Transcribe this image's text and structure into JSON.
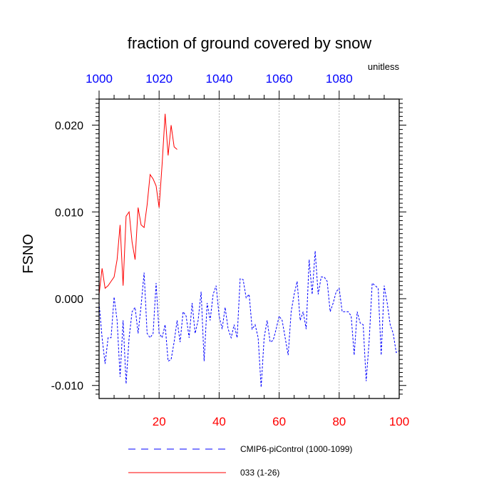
{
  "chart_data": {
    "type": "line",
    "title": "fraction of ground covered by snow",
    "units_label": "unitless",
    "ylabel": "FSNO",
    "xlabel": "",
    "xlim": [
      0,
      100
    ],
    "ylim": [
      -0.0115,
      0.023
    ],
    "x_ticks": [
      "20",
      "40",
      "60",
      "80",
      "100"
    ],
    "x_tick_values": [
      20,
      40,
      60,
      80,
      100
    ],
    "x_tick_color": "#ff0000",
    "top_axis": {
      "ticks": [
        "1000",
        "1020",
        "1040",
        "1060",
        "1080"
      ],
      "tick_values": [
        0,
        20,
        40,
        60,
        80
      ],
      "color": "#0000ff"
    },
    "y_ticks": [
      "-0.010",
      "0.000",
      "0.010",
      "0.020"
    ],
    "y_tick_values": [
      -0.01,
      0.0,
      0.01,
      0.02
    ],
    "grid": "vertical dotted",
    "legend_placement": "bottom",
    "series": [
      {
        "name": "CMIP6-piControl (1000-1099)",
        "color": "#0000ff",
        "style": "dashed",
        "x": [
          0,
          1,
          2,
          3,
          4,
          5,
          6,
          7,
          8,
          9,
          10,
          11,
          12,
          13,
          14,
          15,
          16,
          17,
          18,
          19,
          20,
          21,
          22,
          23,
          24,
          25,
          26,
          27,
          28,
          29,
          30,
          31,
          32,
          33,
          34,
          35,
          36,
          37,
          38,
          39,
          40,
          41,
          42,
          43,
          44,
          45,
          46,
          47,
          48,
          49,
          50,
          51,
          52,
          53,
          54,
          55,
          56,
          57,
          58,
          59,
          60,
          61,
          62,
          63,
          64,
          65,
          66,
          67,
          68,
          69,
          70,
          71,
          72,
          73,
          74,
          75,
          76,
          77,
          78,
          79,
          80,
          81,
          82,
          83,
          84,
          85,
          86,
          87,
          88,
          89,
          90,
          91,
          92,
          93,
          94,
          95,
          96,
          97,
          98,
          99,
          100
        ],
        "y": [
          -0.0005,
          -0.0045,
          -0.0075,
          -0.0045,
          -0.0045,
          0.0002,
          -0.0025,
          -0.009,
          -0.0025,
          -0.0098,
          -0.0045,
          -0.0015,
          -0.001,
          -0.004,
          -0.0008,
          0.003,
          -0.004,
          -0.0045,
          -0.004,
          0.0018,
          -0.004,
          -0.0045,
          -0.003,
          -0.0072,
          -0.007,
          -0.005,
          -0.0025,
          -0.005,
          -0.0015,
          -0.002,
          -0.0045,
          -0.0005,
          -0.004,
          -0.0025,
          0.0008,
          -0.0072,
          -0.0005,
          -0.0025,
          0.0005,
          0.0015,
          -0.002,
          -0.0035,
          -0.001,
          -0.0035,
          -0.0045,
          -0.003,
          -0.0045,
          0.0023,
          0.0022,
          0.0001,
          0.0005,
          -0.0035,
          -0.003,
          -0.0045,
          -0.0102,
          -0.0045,
          -0.0025,
          -0.005,
          -0.0048,
          -0.0035,
          -0.002,
          -0.0025,
          -0.0045,
          -0.0065,
          -0.0015,
          0.0005,
          0.002,
          -0.0025,
          -0.0015,
          -0.0035,
          0.0045,
          0.0005,
          0.0055,
          0.0005,
          0.0025,
          0.0025,
          0.002,
          -0.0015,
          -0.0005,
          0.0008,
          0.0012,
          -0.0015,
          -0.0015,
          -0.0015,
          -0.002,
          -0.0065,
          -0.0015,
          -0.0028,
          -0.003,
          -0.0095,
          -0.0048,
          0.0018,
          0.0015,
          0.0012,
          -0.0065,
          0.0015,
          -0.0005,
          -0.003,
          -0.004,
          -0.0062,
          -0.006
        ]
      },
      {
        "name": "033 (1-26)",
        "color": "#ff0000",
        "style": "solid",
        "x": [
          0,
          1,
          2,
          3,
          4,
          5,
          6,
          7,
          8,
          9,
          10,
          11,
          12,
          13,
          14,
          15,
          16,
          17,
          18,
          19,
          20,
          21,
          22,
          23,
          24,
          25,
          26
        ],
        "y": [
          0.0005,
          0.0035,
          0.0012,
          0.0015,
          0.002,
          0.0025,
          0.0045,
          0.0085,
          0.0015,
          0.0095,
          0.01,
          0.0065,
          0.0045,
          0.0105,
          0.0085,
          0.0082,
          0.0108,
          0.0143,
          0.0138,
          0.013,
          0.0105,
          0.0155,
          0.0213,
          0.0165,
          0.02,
          0.0175,
          0.0172
        ]
      }
    ]
  }
}
